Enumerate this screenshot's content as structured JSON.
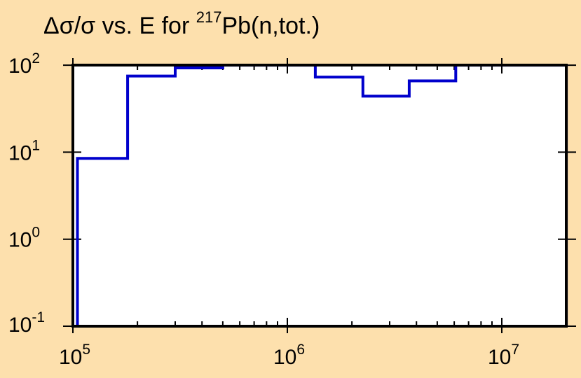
{
  "chart_data": {
    "type": "line",
    "step": true,
    "title": {
      "prefix": "Δσ/σ vs. E for ",
      "mass_number": "217",
      "suffix": "Pb(n,tot.)"
    },
    "xlabel": "",
    "ylabel": "",
    "x_scale": "log",
    "y_scale": "log",
    "xlim": [
      100000,
      20000000
    ],
    "ylim": [
      0.1,
      100
    ],
    "x_ticks": [
      {
        "base": "10",
        "exp": "5",
        "value": 100000
      },
      {
        "base": "10",
        "exp": "6",
        "value": 1000000
      },
      {
        "base": "10",
        "exp": "7",
        "value": 10000000
      }
    ],
    "y_ticks": [
      {
        "base": "10",
        "exp": "-1",
        "value": 0.1
      },
      {
        "base": "10",
        "exp": "0",
        "value": 1
      },
      {
        "base": "10",
        "exp": "1",
        "value": 10
      },
      {
        "base": "10",
        "exp": "2",
        "value": 100
      }
    ],
    "grid": false,
    "series": [
      {
        "color": "#0000cc",
        "bin_edges": [
          105000,
          180000,
          300000,
          500000,
          1350000,
          2250000,
          3700000,
          6100000,
          20000000
        ],
        "values": [
          8.5,
          75,
          93,
          100,
          73,
          44,
          66,
          100
        ]
      }
    ]
  }
}
